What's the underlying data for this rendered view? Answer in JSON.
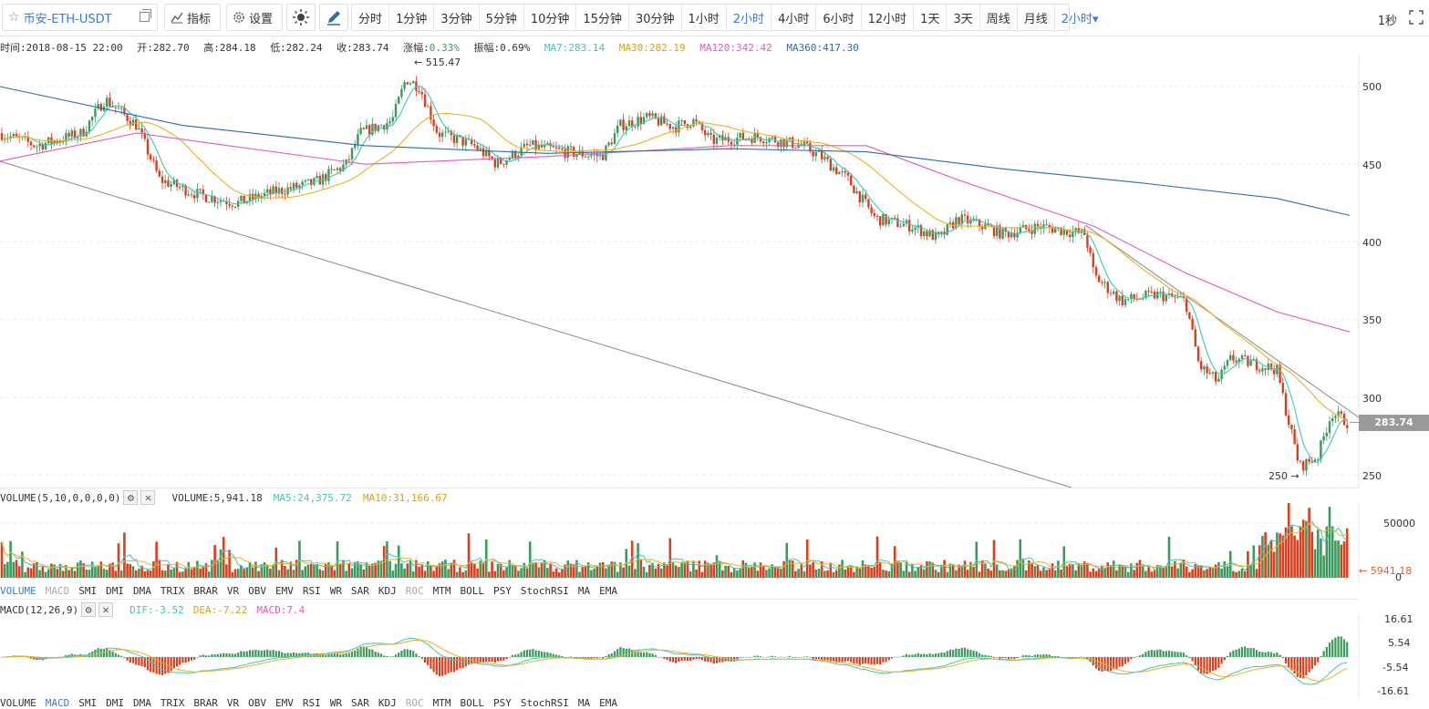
{
  "toolbar": {
    "symbol": "币安-ETH-USDT",
    "indicators_label": "指标",
    "settings_label": "设置",
    "periods": [
      "分时",
      "1分钟",
      "3分钟",
      "5分钟",
      "10分钟",
      "15分钟",
      "30分钟",
      "1小时",
      "2小时",
      "4小时",
      "6小时",
      "12小时",
      "1天",
      "3天",
      "周线",
      "月线"
    ],
    "selected_period": "2小时",
    "period_dropdown": "2小时▾",
    "refresh_interval": "1秒"
  },
  "ohlc_info": {
    "time": "时间:2018-08-15 22:00",
    "open": "开:282.70",
    "high": "高:284.18",
    "low": "低:282.24",
    "close": "收:283.74",
    "change": "涨幅:",
    "change_val": "0.33%",
    "amplitude": "振幅:0.69%",
    "ma7": "MA7:283.14",
    "ma30": "MA30:282.19",
    "ma120": "MA120:342.42",
    "ma360": "MA360:417.30"
  },
  "price_chart": {
    "y_ticks": [
      "500",
      "450",
      "400",
      "350",
      "300",
      "250"
    ],
    "current_price": "283.74",
    "high_label": "← 515.47",
    "low_label": "250 →",
    "colors": {
      "up": "#3a9a5c",
      "down": "#d9401f",
      "ma7": "#3fc7b8",
      "ma30": "#f2b01e",
      "ma120": "#e05cc0",
      "ma360": "#2b6cb0"
    }
  },
  "volume_panel": {
    "title": "VOLUME(5,10,0,0,0,0)",
    "volume": "VOLUME:5,941.18",
    "ma5": "MA5:24,375.72",
    "ma10": "MA10:31,166.67",
    "y_ticks": [
      "50000",
      "0"
    ],
    "current": "← 5941.18"
  },
  "indicator_tabs_1": [
    "VOLUME",
    "MACD",
    "SMI",
    "DMI",
    "DMA",
    "TRIX",
    "BRAR",
    "VR",
    "OBV",
    "EMV",
    "RSI",
    "WR",
    "SAR",
    "KDJ",
    "ROC",
    "MTM",
    "BOLL",
    "PSY",
    "StochRSI",
    "MA",
    "EMA"
  ],
  "macd_panel": {
    "title": "MACD(12,26,9)",
    "dif": "DIF:-3.52",
    "dea": "DEA:-7.22",
    "macd": "MACD:7.4",
    "y_ticks": [
      "16.61",
      "5.54",
      "-5.54",
      "-16.61"
    ]
  },
  "indicator_tabs_2": [
    "VOLUME",
    "MACD",
    "SMI",
    "DMI",
    "DMA",
    "TRIX",
    "BRAR",
    "VR",
    "OBV",
    "EMV",
    "RSI",
    "WR",
    "SAR",
    "KDJ",
    "ROC",
    "MTM",
    "BOLL",
    "PSY",
    "StochRSI",
    "MA",
    "EMA"
  ]
}
